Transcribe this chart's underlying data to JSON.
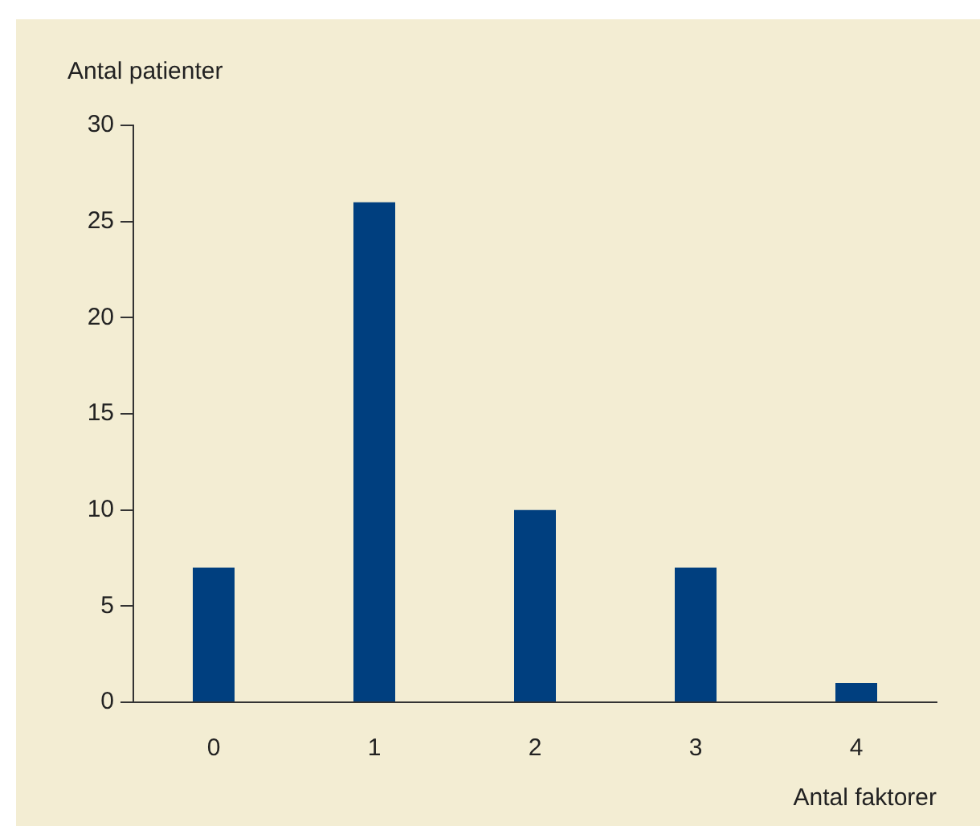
{
  "chart_data": {
    "type": "bar",
    "xlabel": "Antal faktorer",
    "ylabel": "Antal patienter",
    "categories": [
      "0",
      "1",
      "2",
      "3",
      "4"
    ],
    "values": [
      7,
      26,
      10,
      7,
      1
    ],
    "color": "#003f7f",
    "ylim": [
      0,
      30
    ],
    "yticks": [
      0,
      5,
      10,
      15,
      20,
      25,
      30
    ],
    "grid": false,
    "legend": false
  }
}
